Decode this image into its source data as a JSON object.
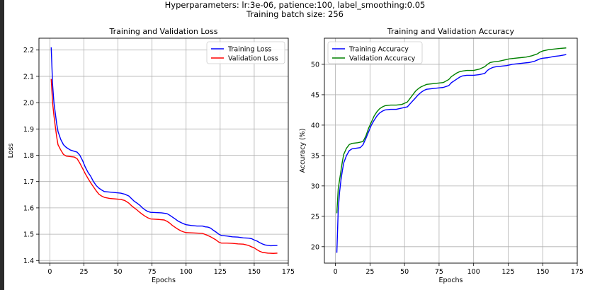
{
  "suptitle": {
    "line1": "Hyperparameters: lr:3e-06, patience:100, label_smoothing:0.05",
    "line2": "Training batch size: 256"
  },
  "chart_data": [
    {
      "type": "line",
      "title": "Training and Validation Loss",
      "xlabel": "Epochs",
      "ylabel": "Loss",
      "xlim": [
        -8,
        175
      ],
      "ylim": [
        1.39,
        2.245
      ],
      "xticks": [
        0,
        25,
        50,
        75,
        100,
        125,
        150,
        175
      ],
      "yticks": [
        1.4,
        1.5,
        1.6,
        1.7,
        1.8,
        1.9,
        2.0,
        2.1,
        2.2
      ],
      "grid": true,
      "legend_position": "upper right",
      "series": [
        {
          "name": "Training Loss",
          "color": "#0000ff",
          "points": [
            [
              1,
              2.21
            ],
            [
              2,
              2.07
            ],
            [
              3,
              2.0
            ],
            [
              4,
              1.96
            ],
            [
              5,
              1.92
            ],
            [
              6,
              1.89
            ],
            [
              8,
              1.86
            ],
            [
              10,
              1.84
            ],
            [
              12,
              1.83
            ],
            [
              15,
              1.82
            ],
            [
              18,
              1.815
            ],
            [
              20,
              1.812
            ],
            [
              22,
              1.8
            ],
            [
              24,
              1.78
            ],
            [
              26,
              1.755
            ],
            [
              28,
              1.735
            ],
            [
              30,
              1.72
            ],
            [
              32,
              1.7
            ],
            [
              34,
              1.685
            ],
            [
              36,
              1.675
            ],
            [
              38,
              1.668
            ],
            [
              40,
              1.662
            ],
            [
              44,
              1.66
            ],
            [
              48,
              1.658
            ],
            [
              52,
              1.656
            ],
            [
              55,
              1.652
            ],
            [
              58,
              1.645
            ],
            [
              60,
              1.635
            ],
            [
              62,
              1.625
            ],
            [
              64,
              1.618
            ],
            [
              66,
              1.61
            ],
            [
              68,
              1.6
            ],
            [
              70,
              1.592
            ],
            [
              72,
              1.586
            ],
            [
              74,
              1.583
            ],
            [
              78,
              1.582
            ],
            [
              82,
              1.581
            ],
            [
              86,
              1.578
            ],
            [
              88,
              1.572
            ],
            [
              90,
              1.565
            ],
            [
              92,
              1.558
            ],
            [
              94,
              1.55
            ],
            [
              96,
              1.545
            ],
            [
              98,
              1.54
            ],
            [
              100,
              1.536
            ],
            [
              104,
              1.533
            ],
            [
              108,
              1.531
            ],
            [
              112,
              1.531
            ],
            [
              114,
              1.528
            ],
            [
              116,
              1.527
            ],
            [
              118,
              1.523
            ],
            [
              120,
              1.515
            ],
            [
              122,
              1.508
            ],
            [
              124,
              1.5
            ],
            [
              126,
              1.495
            ],
            [
              130,
              1.493
            ],
            [
              134,
              1.49
            ],
            [
              138,
              1.489
            ],
            [
              142,
              1.486
            ],
            [
              146,
              1.485
            ],
            [
              148,
              1.483
            ],
            [
              150,
              1.478
            ],
            [
              152,
              1.474
            ],
            [
              154,
              1.468
            ],
            [
              156,
              1.463
            ],
            [
              158,
              1.459
            ],
            [
              162,
              1.456
            ],
            [
              167,
              1.457
            ]
          ]
        },
        {
          "name": "Validation Loss",
          "color": "#ff0000",
          "points": [
            [
              1,
              2.09
            ],
            [
              2,
              2.0
            ],
            [
              3,
              1.95
            ],
            [
              4,
              1.91
            ],
            [
              5,
              1.87
            ],
            [
              6,
              1.84
            ],
            [
              8,
              1.82
            ],
            [
              10,
              1.803
            ],
            [
              12,
              1.797
            ],
            [
              15,
              1.795
            ],
            [
              18,
              1.793
            ],
            [
              20,
              1.787
            ],
            [
              22,
              1.77
            ],
            [
              24,
              1.75
            ],
            [
              26,
              1.73
            ],
            [
              28,
              1.712
            ],
            [
              30,
              1.695
            ],
            [
              32,
              1.68
            ],
            [
              34,
              1.665
            ],
            [
              36,
              1.652
            ],
            [
              38,
              1.645
            ],
            [
              40,
              1.64
            ],
            [
              44,
              1.636
            ],
            [
              48,
              1.634
            ],
            [
              52,
              1.632
            ],
            [
              55,
              1.628
            ],
            [
              58,
              1.618
            ],
            [
              60,
              1.608
            ],
            [
              62,
              1.6
            ],
            [
              64,
              1.592
            ],
            [
              66,
              1.583
            ],
            [
              68,
              1.575
            ],
            [
              70,
              1.568
            ],
            [
              72,
              1.562
            ],
            [
              74,
              1.558
            ],
            [
              80,
              1.556
            ],
            [
              84,
              1.554
            ],
            [
              86,
              1.549
            ],
            [
              88,
              1.542
            ],
            [
              90,
              1.533
            ],
            [
              92,
              1.526
            ],
            [
              94,
              1.519
            ],
            [
              96,
              1.513
            ],
            [
              98,
              1.509
            ],
            [
              100,
              1.506
            ],
            [
              104,
              1.505
            ],
            [
              108,
              1.504
            ],
            [
              112,
              1.503
            ],
            [
              114,
              1.499
            ],
            [
              116,
              1.495
            ],
            [
              118,
              1.49
            ],
            [
              120,
              1.484
            ],
            [
              122,
              1.478
            ],
            [
              124,
              1.47
            ],
            [
              126,
              1.466
            ],
            [
              130,
              1.466
            ],
            [
              134,
              1.465
            ],
            [
              138,
              1.463
            ],
            [
              142,
              1.462
            ],
            [
              146,
              1.457
            ],
            [
              148,
              1.452
            ],
            [
              150,
              1.448
            ],
            [
              152,
              1.441
            ],
            [
              154,
              1.435
            ],
            [
              156,
              1.431
            ],
            [
              160,
              1.428
            ],
            [
              164,
              1.427
            ],
            [
              167,
              1.428
            ]
          ]
        }
      ]
    },
    {
      "type": "line",
      "title": "Training and Validation Accuracy",
      "xlabel": "Epochs",
      "ylabel": "Accuracy (%)",
      "xlim": [
        -8,
        175
      ],
      "ylim": [
        17.3,
        54.3
      ],
      "xticks": [
        0,
        25,
        50,
        75,
        100,
        125,
        150,
        175
      ],
      "yticks": [
        20,
        25,
        30,
        35,
        40,
        45,
        50
      ],
      "grid": true,
      "legend_position": "upper left",
      "series": [
        {
          "name": "Training Accuracy",
          "color": "#0000ff",
          "points": [
            [
              1,
              19.0
            ],
            [
              2,
              26.0
            ],
            [
              3,
              29.0
            ],
            [
              4,
              31.0
            ],
            [
              5,
              32.5
            ],
            [
              6,
              33.8
            ],
            [
              8,
              35.0
            ],
            [
              10,
              35.8
            ],
            [
              12,
              36.1
            ],
            [
              15,
              36.2
            ],
            [
              18,
              36.3
            ],
            [
              20,
              36.8
            ],
            [
              22,
              37.8
            ],
            [
              24,
              38.9
            ],
            [
              26,
              40.0
            ],
            [
              28,
              40.8
            ],
            [
              30,
              41.5
            ],
            [
              32,
              42.0
            ],
            [
              34,
              42.3
            ],
            [
              36,
              42.5
            ],
            [
              40,
              42.6
            ],
            [
              44,
              42.6
            ],
            [
              48,
              42.8
            ],
            [
              52,
              43.0
            ],
            [
              54,
              43.5
            ],
            [
              56,
              44.0
            ],
            [
              58,
              44.5
            ],
            [
              60,
              45.0
            ],
            [
              62,
              45.4
            ],
            [
              64,
              45.7
            ],
            [
              66,
              45.9
            ],
            [
              70,
              46.0
            ],
            [
              74,
              46.1
            ],
            [
              78,
              46.2
            ],
            [
              82,
              46.5
            ],
            [
              84,
              47.0
            ],
            [
              86,
              47.3
            ],
            [
              88,
              47.6
            ],
            [
              90,
              47.9
            ],
            [
              92,
              48.1
            ],
            [
              95,
              48.2
            ],
            [
              100,
              48.2
            ],
            [
              104,
              48.3
            ],
            [
              108,
              48.5
            ],
            [
              110,
              49.0
            ],
            [
              112,
              49.3
            ],
            [
              114,
              49.5
            ],
            [
              116,
              49.6
            ],
            [
              120,
              49.7
            ],
            [
              124,
              49.8
            ],
            [
              128,
              50.0
            ],
            [
              132,
              50.1
            ],
            [
              136,
              50.2
            ],
            [
              140,
              50.3
            ],
            [
              144,
              50.5
            ],
            [
              146,
              50.7
            ],
            [
              148,
              50.9
            ],
            [
              150,
              51.0
            ],
            [
              154,
              51.1
            ],
            [
              158,
              51.3
            ],
            [
              162,
              51.4
            ],
            [
              167,
              51.6
            ]
          ]
        },
        {
          "name": "Validation Accuracy",
          "color": "#008000",
          "points": [
            [
              1,
              25.5
            ],
            [
              2,
              29.5
            ],
            [
              3,
              31.0
            ],
            [
              4,
              32.5
            ],
            [
              5,
              34.0
            ],
            [
              6,
              35.2
            ],
            [
              8,
              36.2
            ],
            [
              10,
              36.8
            ],
            [
              12,
              37.0
            ],
            [
              16,
              37.1
            ],
            [
              20,
              37.3
            ],
            [
              22,
              38.2
            ],
            [
              24,
              39.5
            ],
            [
              26,
              40.5
            ],
            [
              28,
              41.5
            ],
            [
              30,
              42.2
            ],
            [
              32,
              42.7
            ],
            [
              34,
              43.0
            ],
            [
              36,
              43.2
            ],
            [
              40,
              43.3
            ],
            [
              44,
              43.3
            ],
            [
              48,
              43.4
            ],
            [
              52,
              43.8
            ],
            [
              54,
              44.4
            ],
            [
              56,
              45.0
            ],
            [
              58,
              45.6
            ],
            [
              60,
              46.0
            ],
            [
              62,
              46.3
            ],
            [
              64,
              46.5
            ],
            [
              66,
              46.7
            ],
            [
              70,
              46.8
            ],
            [
              74,
              46.9
            ],
            [
              78,
              47.0
            ],
            [
              82,
              47.5
            ],
            [
              84,
              48.0
            ],
            [
              86,
              48.3
            ],
            [
              88,
              48.6
            ],
            [
              90,
              48.8
            ],
            [
              92,
              48.9
            ],
            [
              95,
              49.0
            ],
            [
              100,
              49.0
            ],
            [
              104,
              49.2
            ],
            [
              108,
              49.6
            ],
            [
              110,
              50.0
            ],
            [
              112,
              50.3
            ],
            [
              114,
              50.4
            ],
            [
              118,
              50.5
            ],
            [
              122,
              50.7
            ],
            [
              126,
              50.9
            ],
            [
              130,
              51.0
            ],
            [
              134,
              51.1
            ],
            [
              138,
              51.2
            ],
            [
              142,
              51.4
            ],
            [
              146,
              51.7
            ],
            [
              148,
              52.0
            ],
            [
              150,
              52.2
            ],
            [
              154,
              52.4
            ],
            [
              158,
              52.5
            ],
            [
              162,
              52.6
            ],
            [
              167,
              52.7
            ]
          ]
        }
      ]
    }
  ]
}
